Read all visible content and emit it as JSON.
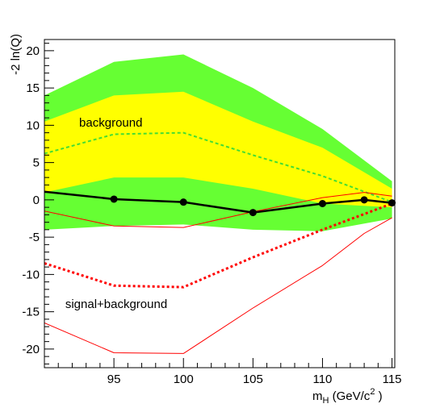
{
  "chart_data": {
    "type": "area",
    "title": "",
    "ylabel": "-2 ln(Q)",
    "xlabel": {
      "main": "m",
      "sub": "H",
      "unit_prefix": " (GeV/c",
      "sup": "2",
      "unit_suffix": " )"
    },
    "xlim": [
      90,
      115.2
    ],
    "ylim": [
      -22.5,
      21.5
    ],
    "x_ticks": [
      95,
      100,
      105,
      110,
      115
    ],
    "y_ticks": [
      20,
      15,
      10,
      5,
      0,
      -5,
      -10,
      -15,
      -20
    ],
    "grid": false,
    "legend": "none",
    "annotations": [
      {
        "text": "background",
        "x": 92.5,
        "y": 9.8
      },
      {
        "text": "signal+background",
        "x": 91.5,
        "y": -14.5
      }
    ],
    "series": [
      {
        "role": "background-2sigma-band",
        "style": "band",
        "color": "#66ff33",
        "x": [
          90,
          95,
          100,
          105,
          110,
          115
        ],
        "upper": [
          14.0,
          18.5,
          19.5,
          15.0,
          9.5,
          2.5
        ],
        "lower": [
          -4.0,
          -3.5,
          -3.3,
          -4.0,
          -4.2,
          -2.5
        ]
      },
      {
        "role": "background-1sigma-band",
        "style": "band",
        "color": "#ffff00",
        "x": [
          90,
          95,
          100,
          105,
          110,
          115
        ],
        "upper": [
          10.5,
          14.0,
          14.5,
          10.5,
          7.0,
          1.5
        ],
        "lower": [
          1.0,
          3.0,
          3.0,
          1.5,
          -0.5,
          -1.0
        ]
      },
      {
        "role": "background-expected",
        "style": "dashed",
        "color": "#44dd33",
        "x": [
          90,
          95,
          100,
          105,
          110,
          115
        ],
        "y": [
          6.2,
          8.8,
          9.0,
          6.0,
          3.2,
          -0.3
        ]
      },
      {
        "role": "signal-plus-background-upper",
        "style": "thin",
        "color": "#ff0000",
        "x": [
          90,
          95,
          100,
          105,
          110,
          113,
          115
        ],
        "y": [
          -1.5,
          -3.5,
          -3.7,
          -1.6,
          0.3,
          1.0,
          0.5
        ]
      },
      {
        "role": "signal-plus-background-expected",
        "style": "dotted",
        "color": "#ff0000",
        "x": [
          90,
          95,
          100,
          105,
          110,
          115
        ],
        "y": [
          -8.5,
          -11.5,
          -11.7,
          -7.7,
          -4.0,
          -0.5
        ]
      },
      {
        "role": "signal-plus-background-lower",
        "style": "thin",
        "color": "#ff0000",
        "x": [
          90,
          95,
          100,
          105,
          110,
          113,
          115
        ],
        "y": [
          -16.5,
          -20.5,
          -20.6,
          -14.5,
          -8.8,
          -4.5,
          -2.4
        ]
      },
      {
        "role": "observed",
        "style": "markers",
        "color": "#000000",
        "x": [
          90,
          95,
          100,
          105,
          110,
          113,
          115
        ],
        "y": [
          1.1,
          0.1,
          -0.3,
          -1.7,
          -0.5,
          0.0,
          -0.4
        ],
        "marker_x": [
          95,
          100,
          105,
          110,
          113,
          115
        ]
      }
    ]
  }
}
